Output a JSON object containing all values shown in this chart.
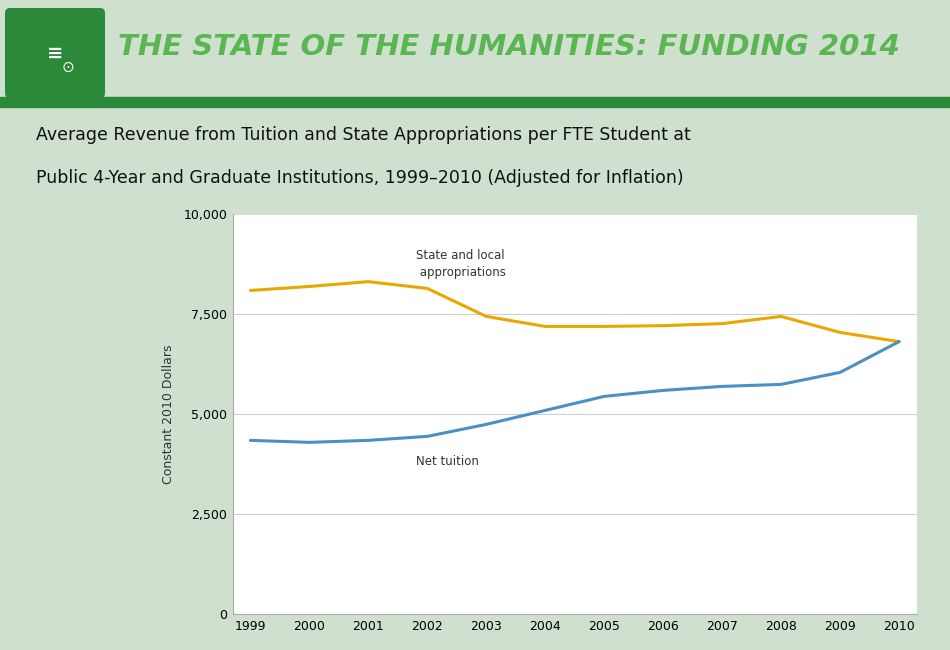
{
  "years": [
    1999,
    2000,
    2001,
    2002,
    2003,
    2004,
    2005,
    2006,
    2007,
    2008,
    2009,
    2010
  ],
  "state_appropriations": [
    8100,
    8200,
    8320,
    8150,
    7450,
    7200,
    7200,
    7220,
    7270,
    7450,
    7050,
    6820
  ],
  "net_tuition": [
    4350,
    4300,
    4350,
    4450,
    4750,
    5100,
    5450,
    5600,
    5700,
    5750,
    6050,
    6820
  ],
  "state_color": "#E8A800",
  "tuition_color": "#4A90C4",
  "line_width": 2.2,
  "ylabel": "Constant 2010 Dollars",
  "ylim": [
    0,
    10000
  ],
  "yticks": [
    0,
    2500,
    5000,
    7500,
    10000
  ],
  "ytick_labels": [
    "0",
    "2,500",
    "5,000",
    "7,500",
    "10,000"
  ],
  "state_label": "State and local\n appropriations",
  "tuition_label": "Net tuition",
  "header_bg": "#1a1a1a",
  "header_green": "#2a8a3a",
  "header_text": "#5ab552",
  "header_title": "THE STATE OF THE HUMANITIES: FUNDING 2014",
  "chart_subtitle_line1": "Average Revenue from Tuition and State Appropriations per FTE Student at",
  "chart_subtitle_line2": "Public 4-Year and Graduate Institutions, 1999–2010 (Adjusted for Inflation)",
  "bg_color": "#cfe0ce",
  "plot_bg": "#ffffff",
  "grid_color": "#cccccc"
}
